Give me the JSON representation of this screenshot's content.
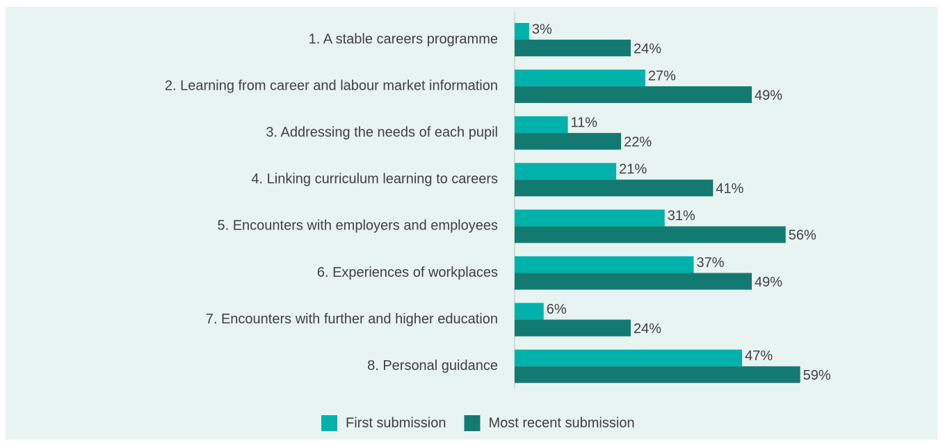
{
  "chart_data": {
    "type": "barh",
    "categories": [
      "1. A stable careers programme",
      "2. Learning from career and labour market information",
      "3. Addressing the needs of each pupil",
      "4. Linking curriculum learning to careers",
      "5. Encounters with employers and employees",
      "6. Experiences of workplaces",
      "7. Encounters with further and higher education",
      "8. Personal guidance"
    ],
    "series": [
      {
        "name": "First submission",
        "color": "#00b2a9",
        "values": [
          3,
          27,
          11,
          21,
          31,
          37,
          6,
          47
        ],
        "value_labels": [
          "3%",
          "27%",
          "11%",
          "21%",
          "31%",
          "37%",
          "6%",
          "47%"
        ]
      },
      {
        "name": "Most recent submission",
        "color": "#137a72",
        "values": [
          24,
          49,
          22,
          41,
          56,
          49,
          24,
          59
        ],
        "value_labels": [
          "24%",
          "49%",
          "22%",
          "41%",
          "56%",
          "49%",
          "24%",
          "59%"
        ]
      }
    ],
    "xlim": [
      0,
      85
    ],
    "legend": "bottom"
  }
}
